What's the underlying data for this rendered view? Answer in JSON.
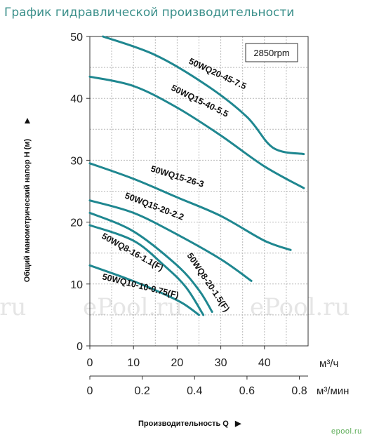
{
  "title": "График гидравлической производительности",
  "watermark": "ePool.ru",
  "logo_text": "epool.ru",
  "chart_data": {
    "type": "line",
    "rpm_label": "2850rpm",
    "ylabel": "Общий манометрический напор H (м)",
    "xlabel": "Производительность Q",
    "x_unit": "м³/ч",
    "x2_unit": "м³/мин",
    "xlim": [
      0,
      50
    ],
    "ylim": [
      0,
      50
    ],
    "x_ticks": [
      0,
      10,
      20,
      30,
      40
    ],
    "x_tick_labels": [
      "0",
      "10",
      "20",
      "30",
      "40"
    ],
    "x2_tick_labels": [
      "0",
      "0.2",
      "0.4",
      "0.6",
      "0.8"
    ],
    "y_ticks": [
      0,
      10,
      20,
      30,
      40,
      50
    ],
    "y_tick_labels": [
      "0",
      "10",
      "20",
      "30",
      "40",
      "50"
    ],
    "grid": true,
    "line_color": "#1f8790",
    "series": [
      {
        "name": "50WQ20-45-7.5",
        "x": [
          3,
          15,
          27,
          36,
          42,
          49
        ],
        "y": [
          50,
          47,
          42,
          37,
          32,
          31
        ]
      },
      {
        "name": "50WQ15-40-5.5",
        "x": [
          0,
          10,
          20,
          30,
          40,
          49
        ],
        "y": [
          43.5,
          42,
          38.5,
          34,
          29,
          25.5
        ]
      },
      {
        "name": "50WQ15-26-3",
        "x": [
          0,
          10,
          20,
          30,
          40,
          46
        ],
        "y": [
          29.5,
          27,
          24,
          21,
          17,
          15.5
        ]
      },
      {
        "name": "50WQ15-20-2.2",
        "x": [
          0,
          10,
          20,
          30,
          37
        ],
        "y": [
          23.5,
          21.5,
          18,
          14,
          10.5
        ]
      },
      {
        "name": "50WQ8-20-1.5(F)",
        "x": [
          0,
          10,
          20,
          25,
          28
        ],
        "y": [
          21.5,
          18.5,
          13,
          9,
          5.5
        ]
      },
      {
        "name": "50WQ8-16-1.1(F)",
        "x": [
          0,
          10,
          17,
          22,
          26
        ],
        "y": [
          19.5,
          17,
          13,
          9.5,
          5
        ]
      },
      {
        "name": "50WQ10-10-0.75(F)",
        "x": [
          0,
          8,
          15,
          21,
          25
        ],
        "y": [
          13,
          11,
          9,
          7,
          5
        ]
      }
    ]
  }
}
